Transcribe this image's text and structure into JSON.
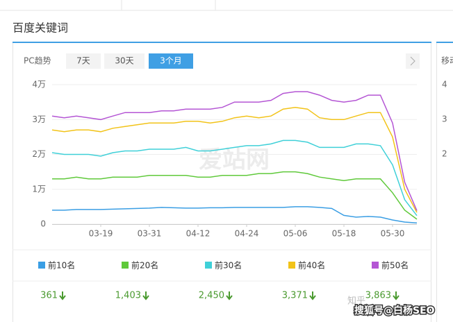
{
  "header": {
    "title": "百度关键词"
  },
  "tabs": {
    "label": "PC趋势",
    "options": [
      "7天",
      "30天",
      "3个月"
    ],
    "active": 2
  },
  "side_panel": {
    "label": "移动",
    "ticks": [
      "4",
      "3",
      "2"
    ]
  },
  "watermarks": [
    "爱站网",
    "知乎",
    "搜狐号@白杨SEO"
  ],
  "chart_data": {
    "type": "line",
    "categories": [
      null,
      null,
      null,
      null,
      "03-19",
      null,
      null,
      null,
      "03-31",
      null,
      null,
      null,
      "04-12",
      null,
      null,
      null,
      "04-24",
      null,
      null,
      null,
      "05-06",
      null,
      null,
      null,
      "05-18",
      null,
      null,
      null,
      "05-30",
      null,
      null
    ],
    "ylim": [
      0,
      40000
    ],
    "yticks": [
      0,
      {
        "value": 10000,
        "label": "1万"
      },
      {
        "value": 20000,
        "label": "2万"
      },
      {
        "value": 30000,
        "label": "3万"
      },
      {
        "value": 40000,
        "label": "4万"
      }
    ],
    "grid": true,
    "series": [
      {
        "name": "前10名",
        "color": "#3a9ee4",
        "current": 361,
        "values": [
          4000,
          4000,
          4200,
          4200,
          4200,
          4300,
          4400,
          4500,
          4600,
          4800,
          4700,
          4600,
          4600,
          4700,
          4700,
          4800,
          4800,
          4800,
          4800,
          4800,
          5000,
          5000,
          4800,
          4500,
          2500,
          2000,
          2200,
          2000,
          1200,
          600,
          361
        ]
      },
      {
        "name": "前20名",
        "color": "#5fc93a",
        "current": {
          "value": 1403,
          "label": "1,403"
        },
        "values": [
          13000,
          13000,
          13500,
          13000,
          13000,
          13500,
          13500,
          13500,
          14000,
          14000,
          14000,
          14000,
          13500,
          13500,
          14000,
          14000,
          14000,
          14500,
          14500,
          15000,
          15000,
          14500,
          13500,
          13000,
          12500,
          13000,
          13000,
          13000,
          9000,
          4000,
          1403
        ]
      },
      {
        "name": "前30名",
        "color": "#3fd0d8",
        "current": {
          "value": 2450,
          "label": "2,450"
        },
        "values": [
          20500,
          20000,
          20000,
          20000,
          19500,
          20500,
          21000,
          21000,
          21500,
          21500,
          21500,
          22000,
          21000,
          21000,
          21500,
          22000,
          22500,
          22500,
          23000,
          24000,
          24000,
          23500,
          22000,
          22000,
          22000,
          23000,
          23000,
          22500,
          17000,
          7000,
          2450
        ]
      },
      {
        "name": "前40名",
        "color": "#f2c318",
        "current": {
          "value": 3371,
          "label": "3,371"
        },
        "values": [
          27000,
          26500,
          27000,
          27000,
          26500,
          27500,
          28000,
          28500,
          29000,
          29000,
          29000,
          29500,
          29500,
          29000,
          29500,
          30500,
          31000,
          30500,
          31000,
          33000,
          33500,
          33000,
          30500,
          30000,
          30000,
          31000,
          32000,
          32000,
          25000,
          10000,
          3371
        ]
      },
      {
        "name": "前50名",
        "color": "#b455d4",
        "current": {
          "value": 3863,
          "label": "3,863"
        },
        "values": [
          31000,
          30500,
          31000,
          30500,
          30000,
          31000,
          32000,
          32000,
          32000,
          32500,
          32500,
          33000,
          33000,
          33000,
          33500,
          35000,
          35000,
          35000,
          35500,
          37500,
          38000,
          38000,
          37000,
          35500,
          35000,
          35500,
          37000,
          37000,
          29000,
          12000,
          3863
        ]
      }
    ]
  }
}
